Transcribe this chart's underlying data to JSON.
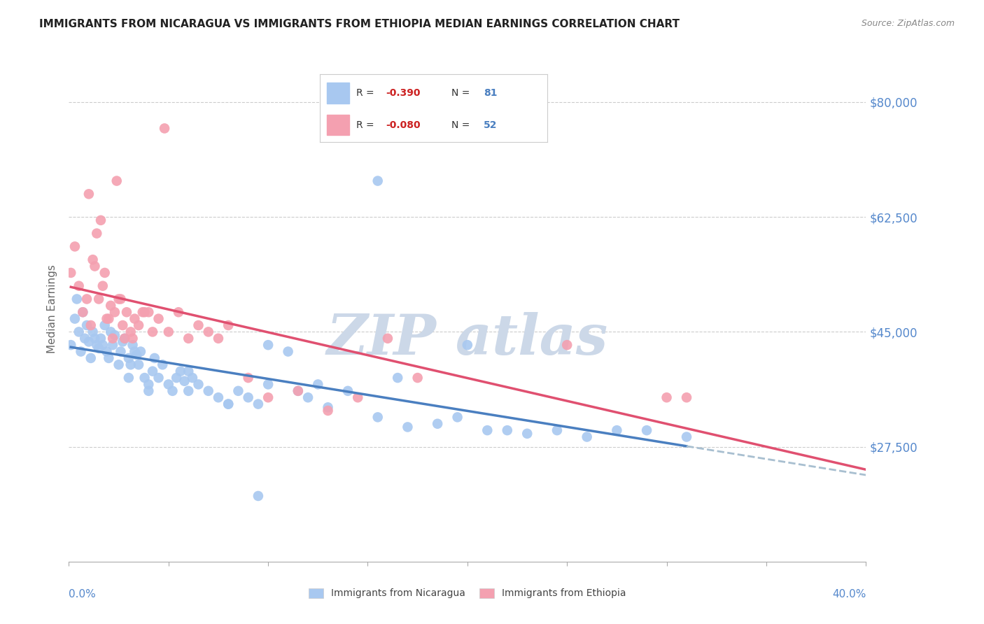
{
  "title": "IMMIGRANTS FROM NICARAGUA VS IMMIGRANTS FROM ETHIOPIA MEDIAN EARNINGS CORRELATION CHART",
  "source": "Source: ZipAtlas.com",
  "ylabel": "Median Earnings",
  "x_range": [
    0.0,
    0.4
  ],
  "y_range": [
    10000,
    87000
  ],
  "y_ticks": [
    27500,
    45000,
    62500,
    80000
  ],
  "y_tick_labels": [
    "$27,500",
    "$45,000",
    "$62,500",
    "$80,000"
  ],
  "nicaragua_R": -0.39,
  "nicaragua_N": 81,
  "ethiopia_R": -0.08,
  "ethiopia_N": 52,
  "nicaragua_color": "#a8c8f0",
  "ethiopia_color": "#f4a0b0",
  "nicaragua_line_color": "#4a7fc0",
  "ethiopia_line_color": "#e05070",
  "trend_extend_color": "#a8bfd0",
  "background_color": "#ffffff",
  "watermark_color": "#ccd8e8",
  "grid_color": "#cccccc",
  "tick_label_color": "#5588cc",
  "nicaragua_x": [
    0.001,
    0.003,
    0.004,
    0.005,
    0.006,
    0.007,
    0.008,
    0.009,
    0.01,
    0.011,
    0.012,
    0.013,
    0.014,
    0.015,
    0.016,
    0.017,
    0.018,
    0.019,
    0.02,
    0.021,
    0.022,
    0.023,
    0.025,
    0.026,
    0.027,
    0.028,
    0.03,
    0.031,
    0.032,
    0.033,
    0.034,
    0.035,
    0.036,
    0.038,
    0.04,
    0.042,
    0.043,
    0.045,
    0.047,
    0.05,
    0.052,
    0.054,
    0.056,
    0.058,
    0.06,
    0.062,
    0.065,
    0.07,
    0.075,
    0.08,
    0.085,
    0.09,
    0.095,
    0.1,
    0.11,
    0.115,
    0.12,
    0.125,
    0.13,
    0.14,
    0.155,
    0.17,
    0.185,
    0.195,
    0.21,
    0.22,
    0.23,
    0.245,
    0.26,
    0.275,
    0.29,
    0.31,
    0.155,
    0.095,
    0.2,
    0.165,
    0.03,
    0.04,
    0.06,
    0.08,
    0.1
  ],
  "nicaragua_y": [
    43000,
    47000,
    50000,
    45000,
    42000,
    48000,
    44000,
    46000,
    43500,
    41000,
    45000,
    44000,
    43000,
    42500,
    44000,
    43000,
    46000,
    42000,
    41000,
    45000,
    43000,
    44500,
    40000,
    42000,
    43500,
    44000,
    41000,
    40000,
    43000,
    42000,
    41500,
    40000,
    42000,
    38000,
    37000,
    39000,
    41000,
    38000,
    40000,
    37000,
    36000,
    38000,
    39000,
    37500,
    36000,
    38000,
    37000,
    36000,
    35000,
    34000,
    36000,
    35000,
    34000,
    43000,
    42000,
    36000,
    35000,
    37000,
    33500,
    36000,
    32000,
    30500,
    31000,
    32000,
    30000,
    30000,
    29500,
    30000,
    29000,
    30000,
    30000,
    29000,
    68000,
    20000,
    43000,
    38000,
    38000,
    36000,
    39000,
    34000,
    37000
  ],
  "ethiopia_x": [
    0.001,
    0.003,
    0.005,
    0.007,
    0.009,
    0.011,
    0.013,
    0.015,
    0.017,
    0.019,
    0.021,
    0.023,
    0.025,
    0.027,
    0.029,
    0.031,
    0.033,
    0.035,
    0.037,
    0.04,
    0.045,
    0.05,
    0.055,
    0.06,
    0.065,
    0.07,
    0.075,
    0.08,
    0.09,
    0.1,
    0.115,
    0.13,
    0.145,
    0.16,
    0.175,
    0.25,
    0.3,
    0.31,
    0.01,
    0.012,
    0.014,
    0.016,
    0.018,
    0.02,
    0.022,
    0.024,
    0.026,
    0.028,
    0.032,
    0.038,
    0.042,
    0.048
  ],
  "ethiopia_y": [
    54000,
    58000,
    52000,
    48000,
    50000,
    46000,
    55000,
    50000,
    52000,
    47000,
    49000,
    48000,
    50000,
    46000,
    48000,
    45000,
    47000,
    46000,
    48000,
    48000,
    47000,
    45000,
    48000,
    44000,
    46000,
    45000,
    44000,
    46000,
    38000,
    35000,
    36000,
    33000,
    35000,
    44000,
    38000,
    43000,
    35000,
    35000,
    66000,
    56000,
    60000,
    62000,
    54000,
    47000,
    44000,
    68000,
    50000,
    44000,
    44000,
    48000,
    45000,
    76000
  ]
}
